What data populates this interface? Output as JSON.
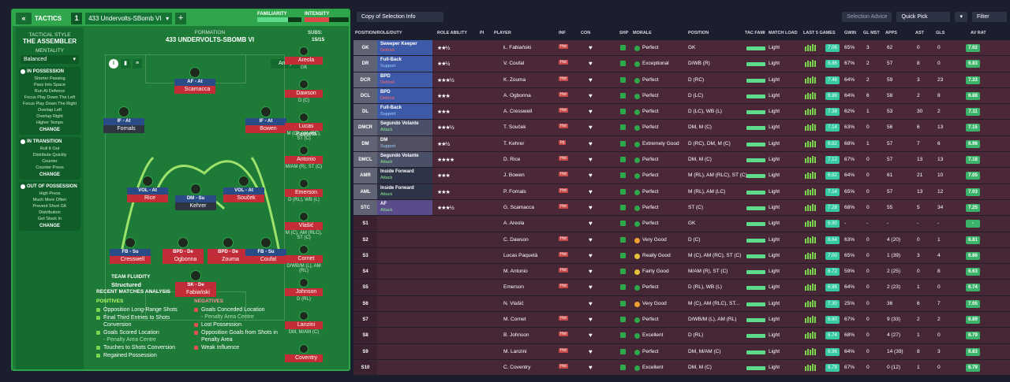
{
  "tactics_panel": {
    "header": {
      "tactics_label": "TACTICS",
      "tactic_number": "1",
      "tactic_name": "433 Undervolts-SBomb VI",
      "familiarity_label": "FAMILIARITY",
      "intensity_label": "INTENSITY"
    },
    "formation_label": "FORMATION",
    "formation_name": "433 UNDERVOLTS-SBOMB VI",
    "subs_label": "SUBS:",
    "subs_count": "15/15",
    "analysis_label": "Analysis",
    "tactical_style_label": "TACTICAL STYLE",
    "tactical_style_value": "THE ASSEMBLER",
    "mentality_label": "MENTALITY",
    "mentality_value": "Balanced",
    "phases": [
      {
        "title": "IN POSSESSION",
        "items": [
          "Shorter Passing",
          "Pass Into Space",
          "Run At Defence",
          "Focus Play Down The Left",
          "Focus Play Down The Right",
          "Overlap Left",
          "Overlap Right",
          "Higher Tempo"
        ],
        "change": "CHANGE"
      },
      {
        "title": "IN TRANSITION",
        "items": [
          "Roll It Out",
          "Distribute Quickly",
          "Counter",
          "Counter-Press"
        ],
        "change": "CHANGE"
      },
      {
        "title": "OUT OF POSSESSION",
        "items": [
          "High Press",
          "Much More Often",
          "Prevent Short GK",
          "Distribution",
          "Get Stuck In"
        ],
        "change": "CHANGE"
      }
    ],
    "team_fluidity_label": "TEAM FLUIDITY",
    "team_fluidity_value": "Structured",
    "players": [
      {
        "role": "AF - At",
        "name": "Scamacca"
      },
      {
        "role": "IF - At",
        "name": "Fornals"
      },
      {
        "role": "IF - At",
        "name": "Bowen"
      },
      {
        "role": "VOL - At",
        "name": "Rice"
      },
      {
        "role": "VOL - At",
        "name": "Souček"
      },
      {
        "role": "DM - Su",
        "name": "Kehrer"
      },
      {
        "role": "FB - Su",
        "name": "Cresswell"
      },
      {
        "role": "BPD - De",
        "name": "Ogbonna"
      },
      {
        "role": "BPD - De",
        "name": "Zouma"
      },
      {
        "role": "FB - Su",
        "name": "Coufal"
      },
      {
        "role": "SK - De",
        "name": "Fabiański"
      }
    ],
    "subs": [
      {
        "name": "Areola",
        "pos": "GK"
      },
      {
        "name": "Dawson",
        "pos": "D (C)"
      },
      {
        "name": "Lucas Paquetá",
        "pos": "M (C), AM (RC), ST (C)"
      },
      {
        "name": "Antonio",
        "pos": "M/AM (R), ST (C)"
      },
      {
        "name": "Emerson",
        "pos": "D (RL), WB (L)"
      },
      {
        "name": "Vlašić",
        "pos": "M (C), AM (RLC), ST (C)"
      },
      {
        "name": "Cornet",
        "pos": "D/WB/M (L), AM (RL)"
      },
      {
        "name": "Johnson",
        "pos": "D (RL)"
      },
      {
        "name": "Lanzini",
        "pos": "DM, M/AM (C)"
      },
      {
        "name": "Coventry",
        "pos": ""
      }
    ],
    "recent": {
      "title": "RECENT MATCHES ANALYSIS",
      "positives_label": "POSITIVES",
      "positives": [
        {
          "text": "Opposition Long-Range Shots",
          "sub": ""
        },
        {
          "text": "Final Third Entries to Shots Conversion",
          "sub": ""
        },
        {
          "text": "Goals Scored Location",
          "sub": "- Penalty Area Centre"
        },
        {
          "text": "Touches to Shots Conversion",
          "sub": ""
        },
        {
          "text": "Regained Possession",
          "sub": ""
        }
      ],
      "negatives_label": "NEGATIVES",
      "negatives": [
        {
          "text": "Goals Conceded Location",
          "sub": "- Penalty Area Centre"
        },
        {
          "text": "Lost Possession",
          "sub": ""
        },
        {
          "text": "Opposition Goals from Shots in Penalty Area",
          "sub": ""
        },
        {
          "text": "Weak Influence",
          "sub": ""
        }
      ]
    }
  },
  "squad_panel": {
    "view_select": "Copy of Selection Info",
    "selection_advice": "Selection Advice",
    "quick_pick": "Quick Pick",
    "filter": "Filter",
    "columns": [
      "POSITION/ROLE/DUTY",
      "ROLE ABILITY",
      "PI",
      "PLAYER",
      "INF",
      "CON",
      "SHP",
      "MORALE",
      "POSITION",
      "TAC FAMI",
      "MATCH LOAD",
      "LAST 5 GAMES",
      "GWIN",
      "GL MST",
      "APPS",
      "AST",
      "GLS",
      "AV RAT"
    ],
    "rows": [
      {
        "pos": "GK",
        "role": "Sweeper Keeper",
        "duty": "Defend",
        "stars": "★★½",
        "player": "Ł. Fabiański",
        "inf": "Hot",
        "morale": "Perfect",
        "position": "GK",
        "load": "Light",
        "form": "7.06",
        "gwin": "65%",
        "glmst": "3",
        "apps": "62",
        "ast": "0",
        "gls": "0",
        "avrat": "7.02"
      },
      {
        "pos": "DR",
        "role": "Full-Back",
        "duty": "Support",
        "stars": "★★½",
        "player": "V. Coufal",
        "inf": "Hot",
        "morale": "Exceptional",
        "position": "D/WB (R)",
        "load": "Light",
        "form": "6.86",
        "gwin": "67%",
        "glmst": "2",
        "apps": "57",
        "ast": "8",
        "gls": "0",
        "avrat": "6.83"
      },
      {
        "pos": "DCR",
        "role": "BPD",
        "duty": "Defend",
        "stars": "★★★½",
        "player": "K. Zouma",
        "inf": "Hot",
        "morale": "Perfect",
        "position": "D (RC)",
        "load": "Light",
        "form": "7.48",
        "gwin": "64%",
        "glmst": "2",
        "apps": "59",
        "ast": "3",
        "gls": "23",
        "avrat": "7.33"
      },
      {
        "pos": "DCL",
        "role": "BPD",
        "duty": "Defend",
        "stars": "★★★",
        "player": "A. Ogbonna",
        "inf": "Hot",
        "morale": "Perfect",
        "position": "D (LC)",
        "load": "Light",
        "form": "6.88",
        "gwin": "64%",
        "glmst": "6",
        "apps": "58",
        "ast": "2",
        "gls": "8",
        "avrat": "6.88"
      },
      {
        "pos": "DL",
        "role": "Full-Back",
        "duty": "Support",
        "stars": "★★★",
        "player": "A. Cresswell",
        "inf": "Hot",
        "morale": "Perfect",
        "position": "D (LC), WB (L)",
        "load": "Light",
        "form": "7.38",
        "gwin": "62%",
        "glmst": "1",
        "apps": "53",
        "ast": "30",
        "gls": "2",
        "avrat": "7.11"
      },
      {
        "pos": "DMCR",
        "role": "Segundo Volante",
        "duty": "Attack",
        "stars": "★★★½",
        "player": "T. Souček",
        "inf": "Hot",
        "morale": "Perfect",
        "position": "DM, M (C)",
        "load": "Light",
        "form": "7.14",
        "gwin": "63%",
        "glmst": "0",
        "apps": "56",
        "ast": "6",
        "gls": "13",
        "avrat": "7.15"
      },
      {
        "pos": "DM",
        "role": "DM",
        "duty": "Support",
        "stars": "★★½",
        "player": "T. Kehrer",
        "inf": "Inj",
        "morale": "Extremely Good",
        "position": "D (RC), DM, M (C)",
        "load": "Light",
        "form": "6.82",
        "gwin": "68%",
        "glmst": "1",
        "apps": "57",
        "ast": "7",
        "gls": "6",
        "avrat": "6.96"
      },
      {
        "pos": "DMCL",
        "role": "Segundo Volante",
        "duty": "Attack",
        "stars": "★★★★",
        "player": "D. Rice",
        "inf": "Hot",
        "morale": "Perfect",
        "position": "DM, M (C)",
        "load": "Light",
        "form": "7.12",
        "gwin": "67%",
        "glmst": "0",
        "apps": "57",
        "ast": "13",
        "gls": "13",
        "avrat": "7.18"
      },
      {
        "pos": "AMR",
        "role": "Inside Forward",
        "duty": "Attack",
        "stars": "★★★",
        "player": "J. Bowen",
        "inf": "Hot",
        "morale": "Perfect",
        "position": "M (RL), AM (RLC), ST (C)",
        "load": "Light",
        "form": "6.82",
        "gwin": "64%",
        "glmst": "0",
        "apps": "61",
        "ast": "21",
        "gls": "10",
        "avrat": "7.05"
      },
      {
        "pos": "AML",
        "role": "Inside Forward",
        "duty": "Attack",
        "stars": "★★★",
        "player": "P. Fornals",
        "inf": "Hot",
        "morale": "Perfect",
        "position": "M (RL), AM (LC)",
        "load": "Light",
        "form": "7.14",
        "gwin": "65%",
        "glmst": "0",
        "apps": "57",
        "ast": "13",
        "gls": "12",
        "avrat": "7.03"
      },
      {
        "pos": "STC",
        "role": "AF",
        "duty": "Attack",
        "stars": "★★★½",
        "player": "G. Scamacca",
        "inf": "Hot",
        "morale": "Perfect",
        "position": "ST (C)",
        "load": "Light",
        "form": "7.28",
        "gwin": "68%",
        "glmst": "0",
        "apps": "55",
        "ast": "5",
        "gls": "34",
        "avrat": "7.25"
      },
      {
        "pos": "S1",
        "role": "",
        "duty": "",
        "stars": "",
        "player": "A. Areola",
        "inf": "",
        "morale": "Perfect",
        "position": "GK",
        "load": "Light",
        "form": "6.90",
        "gwin": "-",
        "glmst": "-",
        "apps": "-",
        "ast": "-",
        "gls": "-",
        "avrat": "-"
      },
      {
        "pos": "S2",
        "role": "",
        "duty": "",
        "stars": "",
        "player": "C. Dawson",
        "inf": "Hot",
        "morale": "Very Good",
        "position": "D (C)",
        "load": "Light",
        "form": "6.64",
        "gwin": "63%",
        "glmst": "0",
        "apps": "4 (20)",
        "ast": "0",
        "gls": "1",
        "avrat": "6.81"
      },
      {
        "pos": "S3",
        "role": "",
        "duty": "",
        "stars": "",
        "player": "Lucas Paquetá",
        "inf": "Hot",
        "morale": "Really Good",
        "position": "M (C), AM (RC), ST (C)",
        "load": "Light",
        "form": "7.00",
        "gwin": "65%",
        "glmst": "0",
        "apps": "1 (39)",
        "ast": "3",
        "gls": "4",
        "avrat": "6.86"
      },
      {
        "pos": "S4",
        "role": "",
        "duty": "",
        "stars": "",
        "player": "M. Antonio",
        "inf": "Hot",
        "morale": "Fairly Good",
        "position": "M/AM (R), ST (C)",
        "load": "Light",
        "form": "6.72",
        "gwin": "59%",
        "glmst": "0",
        "apps": "2 (25)",
        "ast": "0",
        "gls": "8",
        "avrat": "6.63"
      },
      {
        "pos": "S5",
        "role": "",
        "duty": "",
        "stars": "",
        "player": "Emerson",
        "inf": "Hot",
        "morale": "Perfect",
        "position": "D (RL), WB (L)",
        "load": "Light",
        "form": "6.86",
        "gwin": "64%",
        "glmst": "0",
        "apps": "2 (23)",
        "ast": "1",
        "gls": "0",
        "avrat": "6.74"
      },
      {
        "pos": "S6",
        "role": "",
        "duty": "",
        "stars": "",
        "player": "N. Vlašić",
        "inf": "",
        "morale": "Very Good",
        "position": "M (C), AM (RLC), ST...",
        "load": "Light",
        "form": "7.30",
        "gwin": "25%",
        "glmst": "0",
        "apps": "36",
        "ast": "6",
        "gls": "7",
        "avrat": "7.05"
      },
      {
        "pos": "S7",
        "role": "",
        "duty": "",
        "stars": "",
        "player": "M. Cornet",
        "inf": "Hot",
        "morale": "Perfect",
        "position": "D/WB/M (L), AM (RL)",
        "load": "Light",
        "form": "6.80",
        "gwin": "67%",
        "glmst": "0",
        "apps": "9 (33)",
        "ast": "2",
        "gls": "2",
        "avrat": "6.89"
      },
      {
        "pos": "S8",
        "role": "",
        "duty": "",
        "stars": "",
        "player": "B. Johnson",
        "inf": "Hot",
        "morale": "Excellent",
        "position": "D (RL)",
        "load": "Light",
        "form": "6.74",
        "gwin": "68%",
        "glmst": "0",
        "apps": "4 (27)",
        "ast": "1",
        "gls": "0",
        "avrat": "6.79"
      },
      {
        "pos": "S9",
        "role": "",
        "duty": "",
        "stars": "",
        "player": "M. Lanzini",
        "inf": "Hot",
        "morale": "Perfect",
        "position": "DM, M/AM (C)",
        "load": "Light",
        "form": "6.96",
        "gwin": "64%",
        "glmst": "0",
        "apps": "14 (39)",
        "ast": "8",
        "gls": "3",
        "avrat": "6.83"
      },
      {
        "pos": "S10",
        "role": "",
        "duty": "",
        "stars": "",
        "player": "C. Coventry",
        "inf": "Hot",
        "morale": "Excellent",
        "position": "DM, M (C)",
        "load": "Light",
        "form": "6.78",
        "gwin": "67%",
        "glmst": "0",
        "apps": "0 (12)",
        "ast": "1",
        "gls": "0",
        "avrat": "6.79"
      }
    ]
  }
}
